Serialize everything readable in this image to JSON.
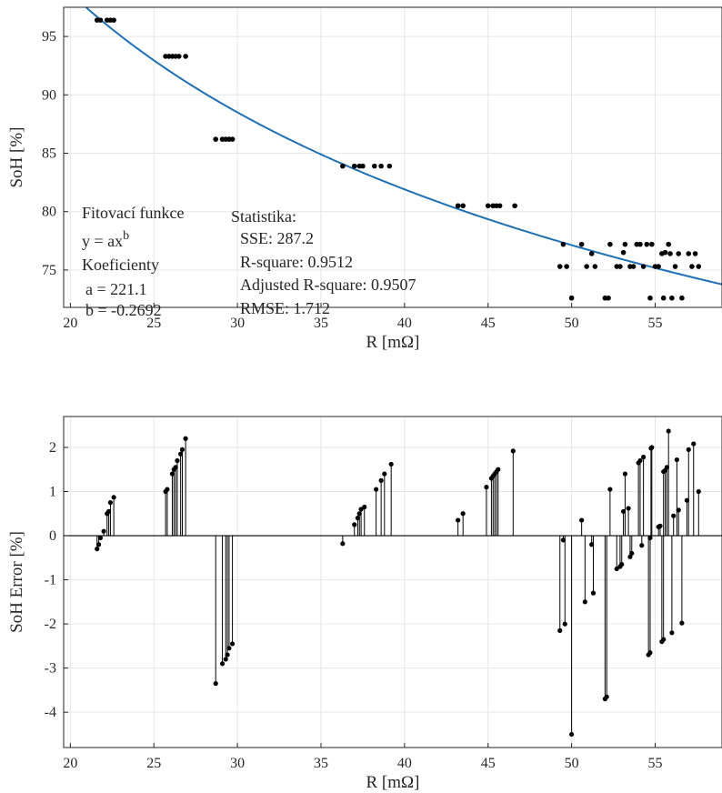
{
  "chart_data": [
    {
      "type": "scatter",
      "xlabel": "R [mΩ]",
      "ylabel": "SoH [%]",
      "xlim": [
        19.6,
        59
      ],
      "ylim": [
        71.8,
        97.5
      ],
      "xticks": [
        20,
        25,
        30,
        35,
        40,
        45,
        50,
        55
      ],
      "yticks": [
        75,
        80,
        85,
        90,
        95
      ],
      "grid": true,
      "legend": "none",
      "colors": {
        "points": "#000000",
        "fit": "#1f6fb5"
      },
      "series": [
        {
          "values": [
            [
              21.6,
              96.4
            ],
            [
              21.8,
              96.4
            ],
            [
              22.2,
              96.4
            ],
            [
              22.4,
              96.4
            ],
            [
              22.6,
              96.4
            ],
            [
              25.7,
              93.3
            ],
            [
              25.9,
              93.3
            ],
            [
              26.1,
              93.3
            ],
            [
              26.3,
              93.3
            ],
            [
              26.5,
              93.3
            ],
            [
              26.9,
              93.3
            ],
            [
              28.7,
              86.2
            ],
            [
              29.1,
              86.2
            ],
            [
              29.3,
              86.2
            ],
            [
              29.5,
              86.2
            ],
            [
              29.7,
              86.2
            ],
            [
              36.3,
              83.9
            ],
            [
              37.0,
              83.9
            ],
            [
              37.3,
              83.9
            ],
            [
              37.5,
              83.9
            ],
            [
              38.2,
              83.9
            ],
            [
              38.6,
              83.9
            ],
            [
              39.1,
              83.9
            ],
            [
              43.2,
              80.5
            ],
            [
              43.5,
              80.5
            ],
            [
              45.0,
              80.5
            ],
            [
              45.3,
              80.5
            ],
            [
              45.5,
              80.5
            ],
            [
              45.7,
              80.5
            ],
            [
              46.6,
              80.5
            ],
            [
              49.3,
              75.3
            ],
            [
              49.5,
              77.2
            ],
            [
              49.7,
              75.3
            ],
            [
              50.0,
              72.6
            ],
            [
              50.6,
              77.2
            ],
            [
              50.9,
              75.3
            ],
            [
              51.2,
              76.4
            ],
            [
              51.4,
              75.3
            ],
            [
              52.0,
              72.6
            ],
            [
              52.2,
              72.6
            ],
            [
              52.3,
              77.2
            ],
            [
              52.7,
              75.3
            ],
            [
              52.9,
              75.3
            ],
            [
              53.1,
              76.5
            ],
            [
              53.2,
              77.2
            ],
            [
              53.5,
              75.3
            ],
            [
              53.7,
              75.3
            ],
            [
              53.9,
              77.2
            ],
            [
              54.1,
              77.2
            ],
            [
              54.3,
              75.3
            ],
            [
              54.5,
              77.2
            ],
            [
              54.7,
              72.6
            ],
            [
              54.8,
              77.2
            ],
            [
              55.0,
              75.3
            ],
            [
              55.2,
              75.3
            ],
            [
              55.4,
              76.4
            ],
            [
              55.5,
              72.6
            ],
            [
              55.6,
              76.5
            ],
            [
              55.8,
              77.2
            ],
            [
              55.9,
              76.4
            ],
            [
              56.0,
              72.6
            ],
            [
              56.2,
              75.3
            ],
            [
              56.4,
              76.4
            ],
            [
              56.6,
              72.6
            ],
            [
              57.0,
              76.4
            ],
            [
              57.2,
              75.3
            ],
            [
              57.4,
              76.4
            ],
            [
              57.6,
              75.3
            ]
          ]
        }
      ],
      "fit": {
        "formula": "y = a*x^b",
        "a": 221.1,
        "b": -0.2692
      },
      "annotations": {
        "fit_title": "Fitovací funkce",
        "fit_formula": "y = ax",
        "fit_formula_exp": "b",
        "coef_title": "Koeficienty",
        "coef_a": "a = 221.1",
        "coef_b": "b = -0.2692",
        "stats_title": "Statistika:",
        "stats_sse": "SSE: 287.2",
        "stats_r2": "R-square: 0.9512",
        "stats_adj": "Adjusted R-square: 0.9507",
        "stats_rmse": "RMSE: 1.712"
      }
    },
    {
      "type": "stem",
      "xlabel": "R [mΩ]",
      "ylabel": "SoH Error [%]",
      "xlim": [
        19.6,
        59
      ],
      "ylim": [
        -4.8,
        2.7
      ],
      "xticks": [
        20,
        25,
        30,
        35,
        40,
        45,
        50,
        55
      ],
      "yticks": [
        -4,
        -3,
        -2,
        -1,
        0,
        1,
        2
      ],
      "grid": true,
      "legend": "none",
      "colors": {
        "stems": "#000000",
        "baseline": "#000000"
      },
      "series": [
        {
          "values": [
            [
              21.6,
              -0.3
            ],
            [
              21.7,
              -0.2
            ],
            [
              21.8,
              -0.05
            ],
            [
              22.0,
              0.1
            ],
            [
              22.2,
              0.5
            ],
            [
              22.3,
              0.55
            ],
            [
              22.4,
              0.75
            ],
            [
              22.6,
              0.87
            ],
            [
              25.7,
              1.0
            ],
            [
              25.8,
              1.05
            ],
            [
              26.1,
              1.4
            ],
            [
              26.2,
              1.5
            ],
            [
              26.3,
              1.55
            ],
            [
              26.4,
              1.7
            ],
            [
              26.6,
              1.85
            ],
            [
              26.7,
              1.95
            ],
            [
              26.9,
              2.2
            ],
            [
              28.7,
              -3.35
            ],
            [
              29.1,
              -2.9
            ],
            [
              29.3,
              -2.8
            ],
            [
              29.4,
              -2.7
            ],
            [
              29.5,
              -2.55
            ],
            [
              29.7,
              -2.45
            ],
            [
              36.3,
              -0.18
            ],
            [
              37.0,
              0.25
            ],
            [
              37.2,
              0.4
            ],
            [
              37.3,
              0.5
            ],
            [
              37.4,
              0.6
            ],
            [
              37.6,
              0.65
            ],
            [
              38.3,
              1.05
            ],
            [
              38.6,
              1.25
            ],
            [
              38.8,
              1.4
            ],
            [
              39.2,
              1.62
            ],
            [
              43.2,
              0.35
            ],
            [
              43.5,
              0.5
            ],
            [
              44.9,
              1.1
            ],
            [
              45.2,
              1.3
            ],
            [
              45.3,
              1.35
            ],
            [
              45.4,
              1.4
            ],
            [
              45.5,
              1.45
            ],
            [
              45.6,
              1.5
            ],
            [
              46.5,
              1.92
            ],
            [
              49.3,
              -2.15
            ],
            [
              49.5,
              -0.1
            ],
            [
              49.6,
              -2.0
            ],
            [
              50.0,
              -4.5
            ],
            [
              50.6,
              0.35
            ],
            [
              50.8,
              -1.5
            ],
            [
              51.2,
              -0.2
            ],
            [
              51.3,
              -1.3
            ],
            [
              52.0,
              -3.7
            ],
            [
              52.1,
              -3.65
            ],
            [
              52.3,
              1.05
            ],
            [
              52.7,
              -0.75
            ],
            [
              52.9,
              -0.7
            ],
            [
              53.0,
              -0.65
            ],
            [
              53.1,
              0.55
            ],
            [
              53.2,
              1.4
            ],
            [
              53.4,
              0.62
            ],
            [
              53.5,
              -0.48
            ],
            [
              53.6,
              -0.4
            ],
            [
              54.0,
              1.65
            ],
            [
              54.1,
              1.7
            ],
            [
              54.2,
              -0.22
            ],
            [
              54.3,
              1.78
            ],
            [
              54.6,
              -2.7
            ],
            [
              54.7,
              -2.65
            ],
            [
              54.75,
              1.98
            ],
            [
              54.8,
              2.0
            ],
            [
              54.7,
              -0.05
            ],
            [
              55.2,
              0.2
            ],
            [
              55.3,
              0.22
            ],
            [
              55.4,
              -2.4
            ],
            [
              55.5,
              -2.35
            ],
            [
              55.5,
              1.45
            ],
            [
              55.6,
              1.48
            ],
            [
              55.7,
              1.55
            ],
            [
              55.8,
              2.37
            ],
            [
              56.0,
              -2.2
            ],
            [
              56.1,
              0.45
            ],
            [
              56.3,
              1.72
            ],
            [
              56.4,
              0.58
            ],
            [
              56.6,
              -1.98
            ],
            [
              56.9,
              0.8
            ],
            [
              57.0,
              1.95
            ],
            [
              57.3,
              2.08
            ],
            [
              57.6,
              1.0
            ]
          ]
        }
      ]
    }
  ]
}
